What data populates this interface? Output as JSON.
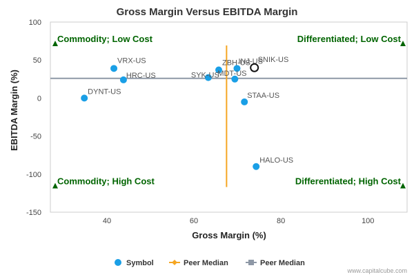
{
  "chart_data": {
    "type": "scatter",
    "title": "Gross Margin Versus EBITDA Margin",
    "xlabel": "Gross Margin (%)",
    "ylabel": "EBITDA Margin (%)",
    "xlim": [
      27,
      109
    ],
    "ylim": [
      -150,
      100
    ],
    "xticks": [
      40,
      60,
      80,
      100
    ],
    "yticks": [
      100,
      50,
      0,
      -50,
      -100,
      -150
    ],
    "grid": false,
    "points": [
      {
        "label": "VRX-US",
        "x": 41.6,
        "y": 39
      },
      {
        "label": "HRC-US",
        "x": 43.8,
        "y": 24
      },
      {
        "label": "DYNT-US",
        "x": 34.8,
        "y": 0
      },
      {
        "label": "ZBH-US",
        "x": 65.7,
        "y": 37
      },
      {
        "label": "INJ-US",
        "x": 69.9,
        "y": 39
      },
      {
        "label": "SYK-US",
        "x": 63.3,
        "y": 27
      },
      {
        "label": "MDT-US",
        "x": 69.4,
        "y": 25
      },
      {
        "label": "STAA-US",
        "x": 71.6,
        "y": -5
      },
      {
        "label": "HALO-US",
        "x": 74.3,
        "y": -90
      }
    ],
    "highlight": {
      "label": "SNIK-US",
      "x": 73.9,
      "y": 40
    },
    "peer_median": {
      "x": 67.5,
      "y": 26
    },
    "quadrants": {
      "top_left": "Commodity; Low Cost",
      "top_right": "Differentiated; Low Cost",
      "bottom_left": "Commodity; High Cost",
      "bottom_right": "Differentiated; High Cost",
      "marker_y_top": 71,
      "marker_y_bottom": -116
    },
    "legend": {
      "placement": "bottom",
      "items": [
        {
          "label": "Symbol",
          "marker": "circle",
          "color": "#1a9fe6"
        },
        {
          "label": "Peer Median",
          "marker": "diamond-line",
          "color": "#f5a623"
        },
        {
          "label": "Peer Median",
          "marker": "square-line",
          "color": "#8e98a6"
        }
      ]
    },
    "colors": {
      "point": "#1a9fe6",
      "quadrant_text": "#006400",
      "vertical_median": "#f5a623",
      "horizontal_median": "#8e98a6"
    },
    "credit": "www.capitalcube.com"
  }
}
